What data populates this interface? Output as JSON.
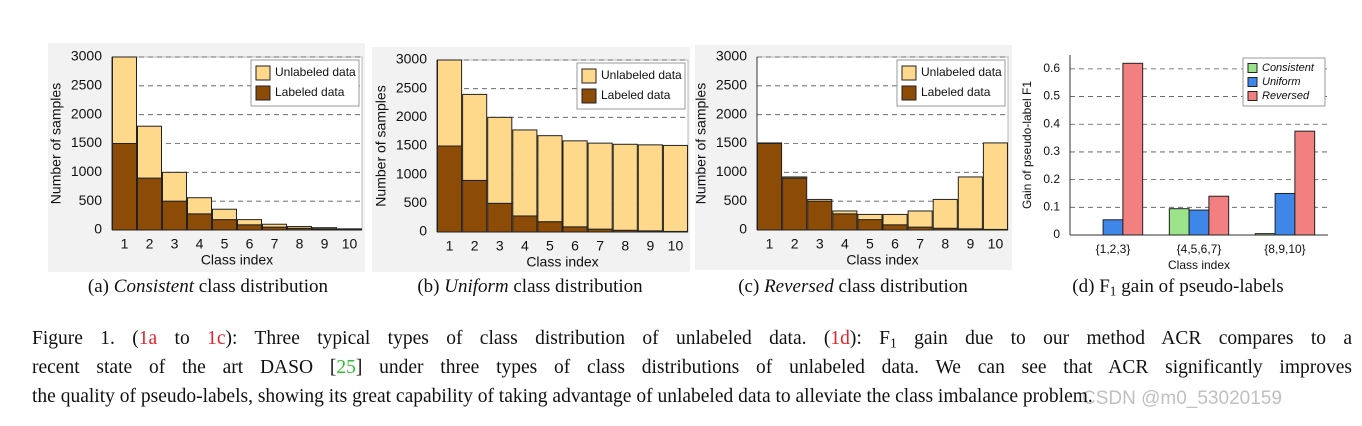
{
  "chart_data": [
    {
      "type": "bar",
      "stacked": true,
      "categories": [
        "1",
        "2",
        "3",
        "4",
        "5",
        "6",
        "7",
        "8",
        "9",
        "10"
      ],
      "series": [
        {
          "name": "Labeled data",
          "color": "#8c4b06",
          "values": [
            1500,
            900,
            500,
            280,
            180,
            90,
            50,
            30,
            20,
            10
          ]
        },
        {
          "name": "Unlabeled data",
          "color": "#fed98b",
          "values": [
            1500,
            900,
            500,
            280,
            180,
            90,
            50,
            30,
            20,
            10
          ]
        }
      ],
      "ylim": [
        0,
        3000
      ],
      "yticks": [
        0,
        500,
        1000,
        1500,
        2000,
        2500,
        3000
      ],
      "grid": true,
      "legend": "upper right",
      "ylabel": "Number of samples",
      "xlabel": "Class index",
      "caption": [
        {
          "text": "(a) "
        },
        {
          "text": "Consistent",
          "style": "italic"
        },
        {
          "text": " class distribution"
        }
      ]
    },
    {
      "type": "bar",
      "stacked": true,
      "categories": [
        "1",
        "2",
        "3",
        "4",
        "5",
        "6",
        "7",
        "8",
        "9",
        "10"
      ],
      "series": [
        {
          "name": "Labeled data",
          "color": "#8c4b06",
          "values": [
            1500,
            900,
            500,
            280,
            180,
            90,
            50,
            30,
            20,
            10
          ]
        },
        {
          "name": "Unlabeled data",
          "color": "#fed98b",
          "values": [
            1500,
            1500,
            1500,
            1500,
            1500,
            1500,
            1500,
            1500,
            1500,
            1500
          ]
        }
      ],
      "ylim": [
        0,
        3000
      ],
      "yticks": [
        0,
        500,
        1000,
        1500,
        2000,
        2500,
        3000
      ],
      "grid": true,
      "legend": "upper right",
      "ylabel": "Number of samples",
      "xlabel": "Class index",
      "caption": [
        {
          "text": "(b) "
        },
        {
          "text": "Uniform",
          "style": "italic"
        },
        {
          "text": " class distribution"
        }
      ]
    },
    {
      "type": "bar",
      "stacked": true,
      "categories": [
        "1",
        "2",
        "3",
        "4",
        "5",
        "6",
        "7",
        "8",
        "9",
        "10"
      ],
      "series": [
        {
          "name": "Labeled data",
          "color": "#8c4b06",
          "values": [
            1500,
            900,
            500,
            280,
            180,
            90,
            50,
            30,
            20,
            10
          ]
        },
        {
          "name": "Unlabeled data",
          "color": "#fed98b",
          "values": [
            10,
            20,
            30,
            50,
            90,
            180,
            280,
            500,
            900,
            1500
          ]
        }
      ],
      "ylim": [
        0,
        3000
      ],
      "yticks": [
        0,
        500,
        1000,
        1500,
        2000,
        2500,
        3000
      ],
      "grid": true,
      "legend": "upper right",
      "ylabel": "Number of samples",
      "xlabel": "Class index",
      "caption": [
        {
          "text": "(c) "
        },
        {
          "text": "Reversed",
          "style": "italic"
        },
        {
          "text": " class distribution"
        }
      ]
    },
    {
      "type": "bar",
      "stacked": false,
      "categories": [
        "{1,2,3}",
        "{4,5,6,7}",
        "{8,9,10}"
      ],
      "series": [
        {
          "name": "Consistent",
          "color": "#9be48a",
          "values": [
            0,
            0.095,
            0.005
          ]
        },
        {
          "name": "Uniform",
          "color": "#3f86e9",
          "values": [
            0.055,
            0.09,
            0.15
          ]
        },
        {
          "name": "Reversed",
          "color": "#f28080",
          "values": [
            0.62,
            0.14,
            0.375
          ]
        }
      ],
      "ylim": [
        0,
        0.65
      ],
      "yticks": [
        0,
        0.1,
        0.2,
        0.3,
        0.4,
        0.5,
        0.6
      ],
      "grid": true,
      "legend": "upper right",
      "ylabel": "Gain of pseudo-label F1",
      "xlabel": "Class index",
      "caption": [
        {
          "text": "(d) F"
        },
        {
          "text": "1",
          "style": "sub"
        },
        {
          "text": " gain of pseudo-labels"
        }
      ]
    }
  ],
  "figure_caption": [
    [
      {
        "text": "Figure 1. ("
      },
      {
        "text": "1a",
        "color": "#e8202a"
      },
      {
        "text": " to "
      },
      {
        "text": "1c",
        "color": "#e8202a"
      },
      {
        "text": "): Three typical types of class distribution of unlabeled data. ("
      },
      {
        "text": "1d",
        "color": "#e8202a"
      },
      {
        "text": "): F"
      },
      {
        "text": "1",
        "style": "sub"
      },
      {
        "text": " gain due to our method ACR compares to a"
      }
    ],
    [
      {
        "text": "recent state of the art DASO ["
      },
      {
        "text": "25",
        "color": "#2fc02f"
      },
      {
        "text": "] under three types of class distributions of unlabeled data. We can see that ACR significantly improves"
      }
    ],
    [
      {
        "text": "the quality of pseudo-labels, showing its great capability of taking advantage of unlabeled data to alleviate the class imbalance problem."
      }
    ]
  ],
  "watermark": "CSDN @m0_53020159"
}
